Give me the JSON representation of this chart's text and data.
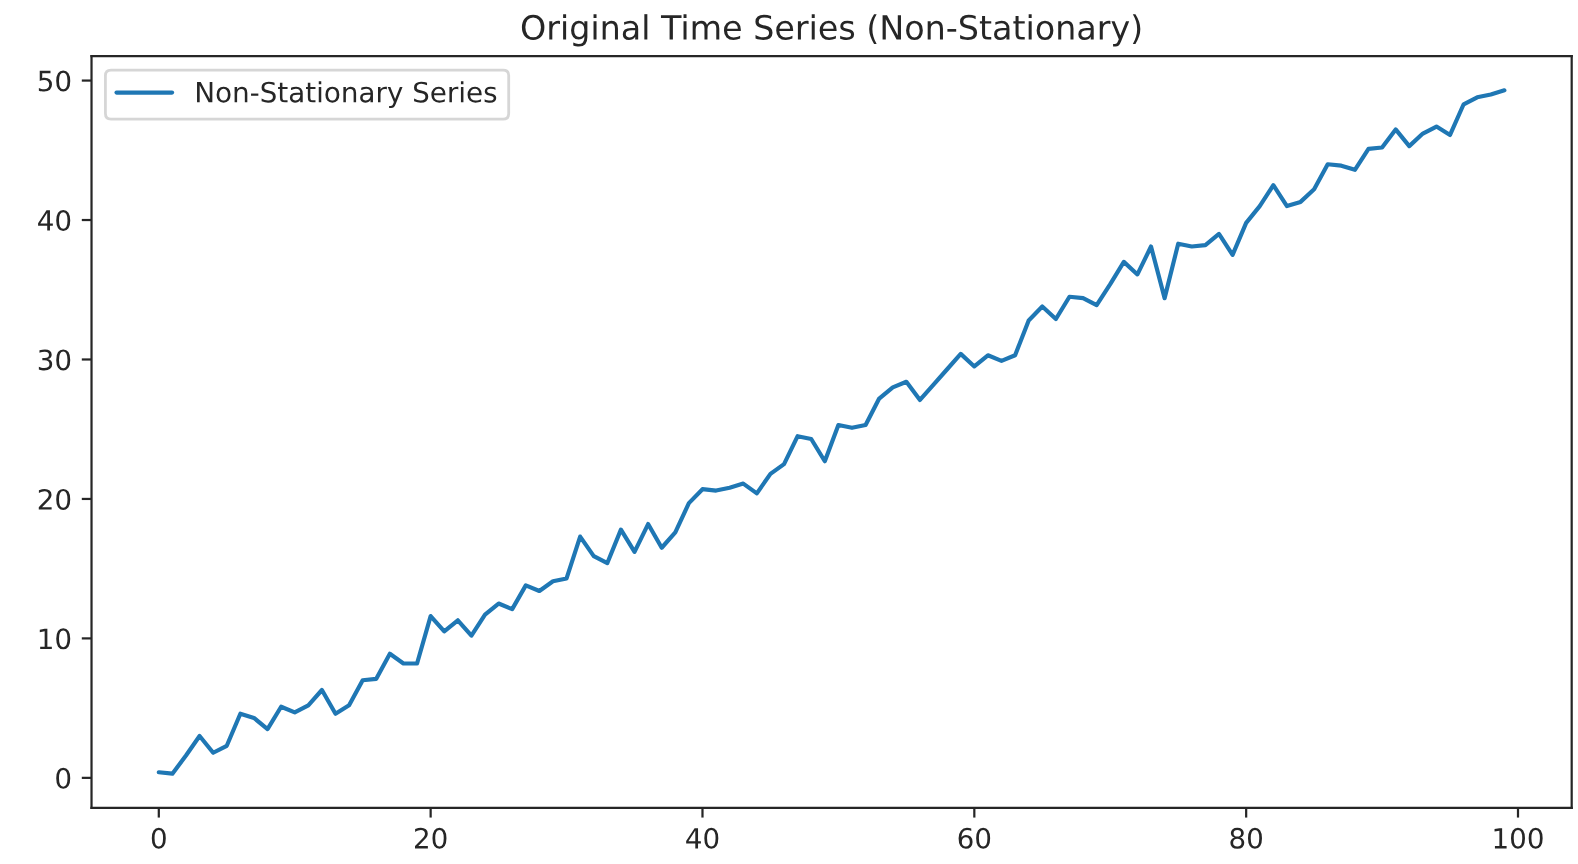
{
  "chart_data": {
    "type": "line",
    "title": "Original Time Series (Non-Stationary)",
    "x": [
      0,
      1,
      2,
      3,
      4,
      5,
      6,
      7,
      8,
      9,
      10,
      11,
      12,
      13,
      14,
      15,
      16,
      17,
      18,
      19,
      20,
      21,
      22,
      23,
      24,
      25,
      26,
      27,
      28,
      29,
      30,
      31,
      32,
      33,
      34,
      35,
      36,
      37,
      38,
      39,
      40,
      41,
      42,
      43,
      44,
      45,
      46,
      47,
      48,
      49,
      50,
      51,
      52,
      53,
      54,
      55,
      56,
      57,
      58,
      59,
      60,
      61,
      62,
      63,
      64,
      65,
      66,
      67,
      68,
      69,
      70,
      71,
      72,
      73,
      74,
      75,
      76,
      77,
      78,
      79,
      80,
      81,
      82,
      83,
      84,
      85,
      86,
      87,
      88,
      89,
      90,
      91,
      92,
      93,
      94,
      95,
      96,
      97,
      98,
      99
    ],
    "series": [
      {
        "name": "Non-Stationary Series",
        "color": "#1f77b4",
        "values": [
          0.4,
          0.3,
          1.6,
          3.0,
          1.8,
          2.3,
          4.6,
          4.3,
          3.5,
          5.1,
          4.7,
          5.2,
          6.3,
          4.6,
          5.2,
          7.0,
          7.1,
          8.9,
          8.2,
          8.2,
          11.6,
          10.5,
          11.3,
          10.2,
          11.7,
          12.5,
          12.1,
          13.8,
          13.4,
          14.1,
          14.3,
          17.3,
          15.9,
          15.4,
          17.8,
          16.2,
          18.2,
          16.5,
          17.6,
          19.7,
          20.7,
          20.6,
          20.8,
          21.1,
          20.4,
          21.8,
          22.5,
          24.5,
          24.3,
          22.7,
          25.3,
          25.1,
          25.3,
          27.2,
          28.0,
          28.4,
          27.1,
          28.2,
          29.3,
          30.4,
          29.5,
          30.3,
          29.9,
          30.3,
          32.8,
          33.8,
          32.9,
          34.5,
          34.4,
          33.9,
          35.4,
          37.0,
          36.1,
          38.1,
          34.4,
          38.3,
          38.1,
          38.2,
          39.0,
          37.5,
          39.8,
          41.0,
          42.5,
          41.0,
          41.3,
          42.2,
          44.0,
          43.9,
          43.6,
          45.1,
          45.2,
          46.5,
          45.3,
          46.2,
          46.7,
          46.1,
          48.3,
          48.8,
          49.0,
          49.3
        ]
      }
    ],
    "xlim": [
      -4.95,
      103.95
    ],
    "ylim": [
      -2.15,
      51.75
    ],
    "xticks": [
      0,
      20,
      40,
      60,
      80,
      100
    ],
    "yticks": [
      0,
      10,
      20,
      30,
      40,
      50
    ],
    "legend": "top left",
    "grid": false,
    "line_style": "solid"
  }
}
